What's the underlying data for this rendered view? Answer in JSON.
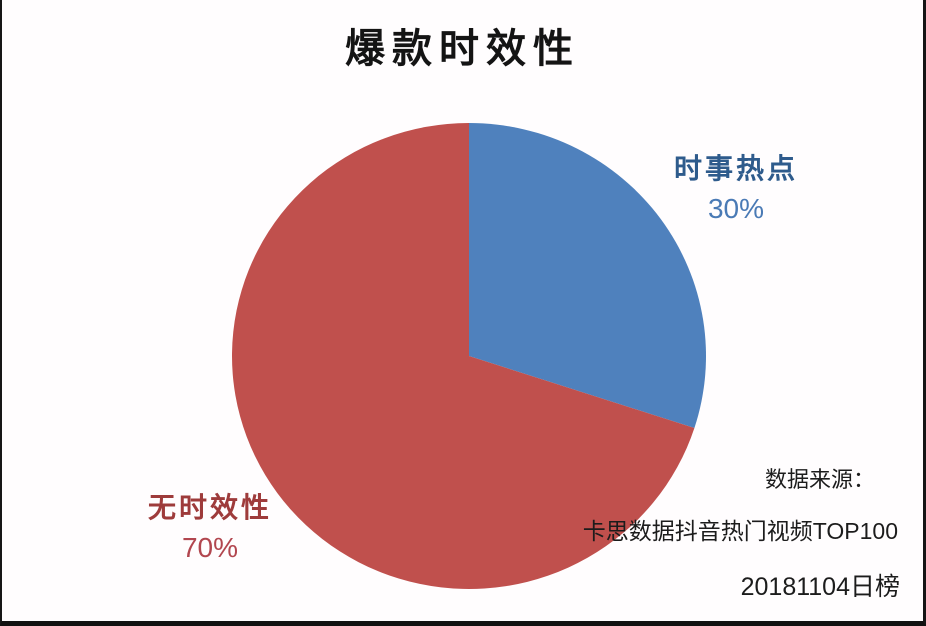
{
  "chart_data": {
    "type": "pie",
    "title": "爆款时效性",
    "categories": [
      "时事热点",
      "无时效性"
    ],
    "values": [
      30,
      70
    ],
    "data_labels": [
      "30%",
      "70%"
    ],
    "colors": [
      "#4F81BD",
      "#C0504D"
    ],
    "label_colors": [
      "#2E5B8C",
      "#9E3B3B"
    ],
    "pct_colors": [
      "#4A7AB5",
      "#B2464F"
    ],
    "start_angle_deg": 0,
    "direction": "clockwise",
    "legend_position": "none",
    "grid": false
  },
  "labels": {
    "slice_blue_name": "时事热点",
    "slice_blue_pct": "30%",
    "slice_red_name": "无时效性",
    "slice_red_pct": "70%"
  },
  "source": {
    "line1": "数据来源：",
    "line2": "卡思数据抖音热门视频TOP100",
    "line3": "20181104日榜"
  }
}
